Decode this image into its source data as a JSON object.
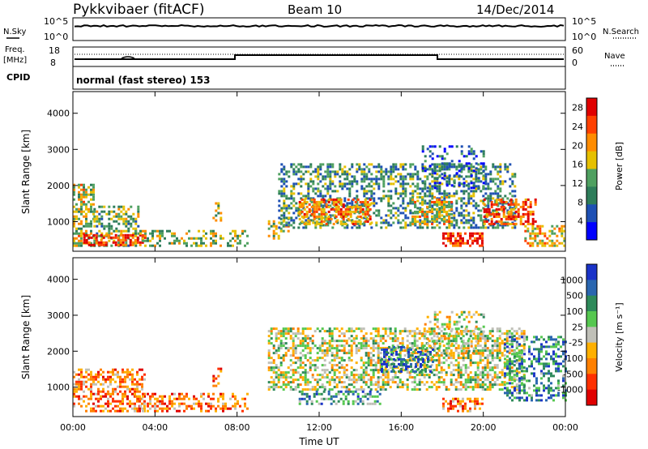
{
  "header": {
    "station": "Pykkvibaer (fitACF)",
    "beam": "Beam 10",
    "date": "14/Dec/2014"
  },
  "status_panels": {
    "nsky": {
      "label": "N.Sky",
      "ticks": [
        "10^5",
        "10^0"
      ]
    },
    "nsearch": {
      "label": "N.Search",
      "ticks": [
        "10^5",
        "10^0"
      ]
    },
    "freq": {
      "label_line1": "Freq.",
      "label_line2": "[MHz]",
      "ticks": [
        "18",
        "8"
      ]
    },
    "nave": {
      "label": "Nave",
      "ticks": [
        "60",
        "0"
      ]
    },
    "cpid": {
      "label": "CPID",
      "mode": "normal (fast stereo) 153"
    }
  },
  "chart_data": [
    {
      "type": "heatmap",
      "name": "power",
      "ylabel": "Slant Range [km]",
      "xlabel": "",
      "x_ticks": [
        "00:00",
        "04:00",
        "08:00",
        "12:00",
        "16:00",
        "20:00",
        "00:00"
      ],
      "y_ticks": [
        "1000",
        "2000",
        "3000",
        "4000"
      ],
      "ylim": [
        180,
        4600
      ],
      "colorbar": {
        "label": "Power [dB]",
        "ticks": [
          "4",
          "8",
          "12",
          "16",
          "20",
          "24",
          "28"
        ],
        "range": [
          0,
          30
        ],
        "colors": [
          "#0000ff",
          "#1e50b4",
          "#2e7d5a",
          "#4fa060",
          "#e6c000",
          "#ff8c00",
          "#ff4000",
          "#e00000"
        ]
      },
      "regions": [
        {
          "t": [
            0.0,
            1.0
          ],
          "r": [
            300,
            2000
          ],
          "level": 0.55,
          "d": 0.55
        },
        {
          "t": [
            1.0,
            3.2
          ],
          "r": [
            300,
            1400
          ],
          "level": 0.45,
          "d": 0.45
        },
        {
          "t": [
            0.5,
            3.5
          ],
          "r": [
            320,
            600
          ],
          "level": 0.85,
          "d": 0.6
        },
        {
          "t": [
            3.0,
            8.5
          ],
          "r": [
            300,
            750
          ],
          "level": 0.5,
          "d": 0.35
        },
        {
          "t": [
            6.8,
            7.2
          ],
          "r": [
            1000,
            1500
          ],
          "level": 0.55,
          "d": 0.4
        },
        {
          "t": [
            9.5,
            10.5
          ],
          "r": [
            500,
            1100
          ],
          "level": 0.55,
          "d": 0.3
        },
        {
          "t": [
            10.0,
            21.5
          ],
          "r": [
            800,
            2600
          ],
          "level": 0.35,
          "d": 0.45
        },
        {
          "t": [
            11.0,
            14.5
          ],
          "r": [
            900,
            1600
          ],
          "level": 0.7,
          "d": 0.6
        },
        {
          "t": [
            16.5,
            18.5
          ],
          "r": [
            900,
            1700
          ],
          "level": 0.6,
          "d": 0.55
        },
        {
          "t": [
            18.0,
            20.0
          ],
          "r": [
            300,
            700
          ],
          "level": 0.85,
          "d": 0.65
        },
        {
          "t": [
            20.0,
            22.5
          ],
          "r": [
            900,
            1600
          ],
          "level": 0.8,
          "d": 0.6
        },
        {
          "t": [
            22.0,
            24.0
          ],
          "r": [
            300,
            900
          ],
          "level": 0.6,
          "d": 0.5
        },
        {
          "t": [
            17.0,
            20.0
          ],
          "r": [
            1900,
            3100
          ],
          "level": 0.2,
          "d": 0.25
        }
      ]
    },
    {
      "type": "heatmap",
      "name": "velocity",
      "ylabel": "Slant Range [km]",
      "xlabel": "Time UT",
      "x_ticks": [
        "00:00",
        "04:00",
        "08:00",
        "12:00",
        "16:00",
        "20:00",
        "00:00"
      ],
      "y_ticks": [
        "1000",
        "2000",
        "3000",
        "4000"
      ],
      "ylim": [
        180,
        4600
      ],
      "colorbar": {
        "label": "Velocity [m s⁻¹]",
        "ticks": [
          "1000",
          "500",
          "100",
          "25",
          "-25",
          "-100",
          "-500",
          "-1000"
        ],
        "range": [
          -1000,
          1000
        ],
        "colors": [
          "#1a33c8",
          "#2a66b0",
          "#2e8a5a",
          "#56c850",
          "#c0c0b8",
          "#ffb000",
          "#ff8000",
          "#ff3000",
          "#e00000"
        ]
      },
      "regions": [
        {
          "t": [
            0.0,
            3.5
          ],
          "r": [
            300,
            1500
          ],
          "level": 0.7,
          "d": 0.5
        },
        {
          "t": [
            3.0,
            8.5
          ],
          "r": [
            300,
            800
          ],
          "level": 0.72,
          "d": 0.35
        },
        {
          "t": [
            6.8,
            7.2
          ],
          "r": [
            1000,
            1500
          ],
          "level": 0.75,
          "d": 0.4
        },
        {
          "t": [
            9.5,
            22.0
          ],
          "r": [
            900,
            2600
          ],
          "level": 0.5,
          "d": 0.5
        },
        {
          "t": [
            11.0,
            15.0
          ],
          "r": [
            500,
            900
          ],
          "level": 0.3,
          "d": 0.45
        },
        {
          "t": [
            15.0,
            17.5
          ],
          "r": [
            1400,
            2100
          ],
          "level": 0.15,
          "d": 0.45
        },
        {
          "t": [
            18.0,
            20.0
          ],
          "r": [
            300,
            700
          ],
          "level": 0.72,
          "d": 0.5
        },
        {
          "t": [
            21.0,
            24.0
          ],
          "r": [
            600,
            2400
          ],
          "level": 0.25,
          "d": 0.4
        },
        {
          "t": [
            17.0,
            20.0
          ],
          "r": [
            1900,
            3100
          ],
          "level": 0.5,
          "d": 0.25
        }
      ]
    }
  ]
}
